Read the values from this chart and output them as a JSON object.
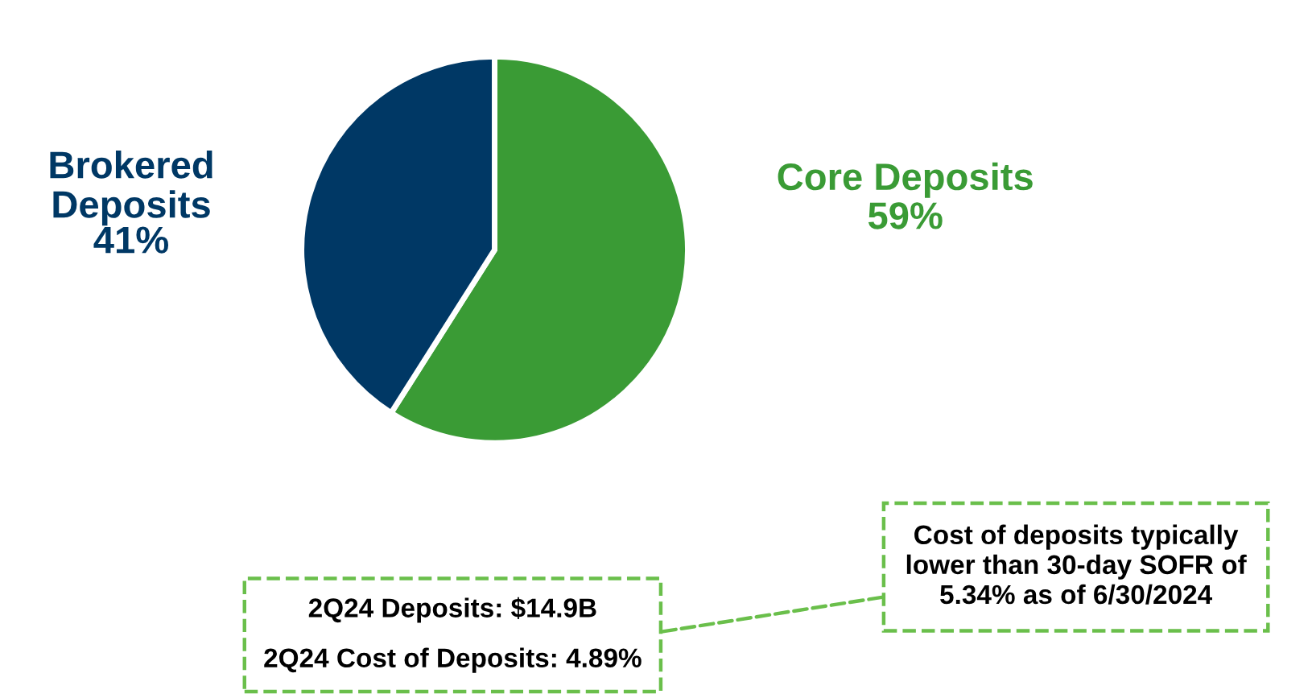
{
  "chart_data": {
    "type": "pie",
    "categories": [
      "Core Deposits",
      "Brokered Deposits"
    ],
    "values": [
      59,
      41
    ],
    "value_labels": [
      "59%",
      "41%"
    ],
    "colors": [
      "#3a9b35",
      "#003865"
    ],
    "legend": false,
    "annotations": [
      "2Q24 Deposits: $14.9B\n\n2Q24 Cost of Deposits: 4.89%",
      "Cost of deposits typically\nlower than 30-day SOFR of\n5.34% as of 6/30/2024"
    ]
  }
}
